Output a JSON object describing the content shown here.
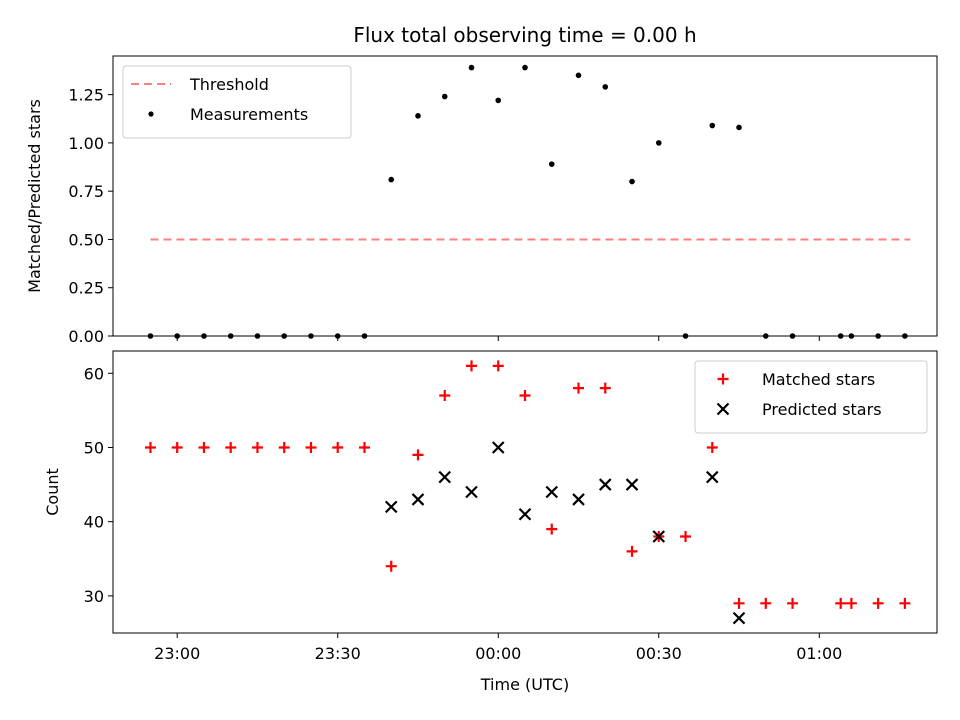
{
  "title": "Flux total observing time = 0.00 h",
  "colors": {
    "threshold": "#ff7f7f",
    "measurements": "#000000",
    "matched": "#ff0000",
    "predicted": "#000000"
  },
  "x_axis": {
    "label": "Time (UTC)",
    "ticks": [
      "23:00",
      "23:30",
      "00:00",
      "00:30",
      "01:00"
    ],
    "range": [
      "22:48",
      "01:22"
    ]
  },
  "chart_data": [
    {
      "type": "scatter",
      "ylabel": "Matched/Predicted stars",
      "ylim": [
        0,
        1.45
      ],
      "yticks": [
        0.0,
        0.25,
        0.5,
        0.75,
        1.0,
        1.25
      ],
      "legend_position": "top-left",
      "series": [
        {
          "name": "Threshold",
          "style": "dashed-line",
          "x": [
            "22:55",
            "01:17"
          ],
          "y": [
            0.5,
            0.5
          ]
        },
        {
          "name": "Measurements",
          "style": "dot",
          "x": [
            "22:55",
            "23:00",
            "23:05",
            "23:10",
            "23:15",
            "23:20",
            "23:25",
            "23:30",
            "23:35",
            "23:40",
            "23:45",
            "23:50",
            "23:55",
            "00:00",
            "00:05",
            "00:10",
            "00:15",
            "00:20",
            "00:25",
            "00:30",
            "00:35",
            "00:40",
            "00:45",
            "00:50",
            "00:55",
            "01:04",
            "01:06",
            "01:11",
            "01:16"
          ],
          "y": [
            0.0,
            0.0,
            0.0,
            0.0,
            0.0,
            0.0,
            0.0,
            0.0,
            0.0,
            0.81,
            1.14,
            1.24,
            1.39,
            1.22,
            1.39,
            0.89,
            1.35,
            1.29,
            0.8,
            1.0,
            0.0,
            1.09,
            1.08,
            0.0,
            0.0,
            0.0,
            0.0,
            0.0,
            0.0
          ]
        }
      ]
    },
    {
      "type": "scatter",
      "ylabel": "Count",
      "ylim": [
        25,
        63
      ],
      "yticks": [
        30,
        40,
        50,
        60
      ],
      "legend_position": "top-right",
      "series": [
        {
          "name": "Matched stars",
          "style": "plus",
          "x": [
            "22:55",
            "23:00",
            "23:05",
            "23:10",
            "23:15",
            "23:20",
            "23:25",
            "23:30",
            "23:35",
            "23:40",
            "23:45",
            "23:50",
            "23:55",
            "00:00",
            "00:05",
            "00:10",
            "00:15",
            "00:20",
            "00:25",
            "00:30",
            "00:35",
            "00:40",
            "00:45",
            "00:50",
            "00:55",
            "01:04",
            "01:06",
            "01:11",
            "01:16"
          ],
          "y": [
            50,
            50,
            50,
            50,
            50,
            50,
            50,
            50,
            50,
            34,
            49,
            57,
            61,
            61,
            57,
            39,
            58,
            58,
            36,
            38,
            38,
            50,
            29,
            29,
            29,
            29,
            29,
            29,
            29
          ]
        },
        {
          "name": "Predicted stars",
          "style": "x",
          "x": [
            "23:40",
            "23:45",
            "23:50",
            "23:55",
            "00:00",
            "00:05",
            "00:10",
            "00:15",
            "00:20",
            "00:25",
            "00:30",
            "00:40",
            "00:45"
          ],
          "y": [
            42,
            43,
            46,
            44,
            50,
            41,
            44,
            43,
            45,
            45,
            38,
            46,
            27
          ]
        }
      ]
    }
  ]
}
